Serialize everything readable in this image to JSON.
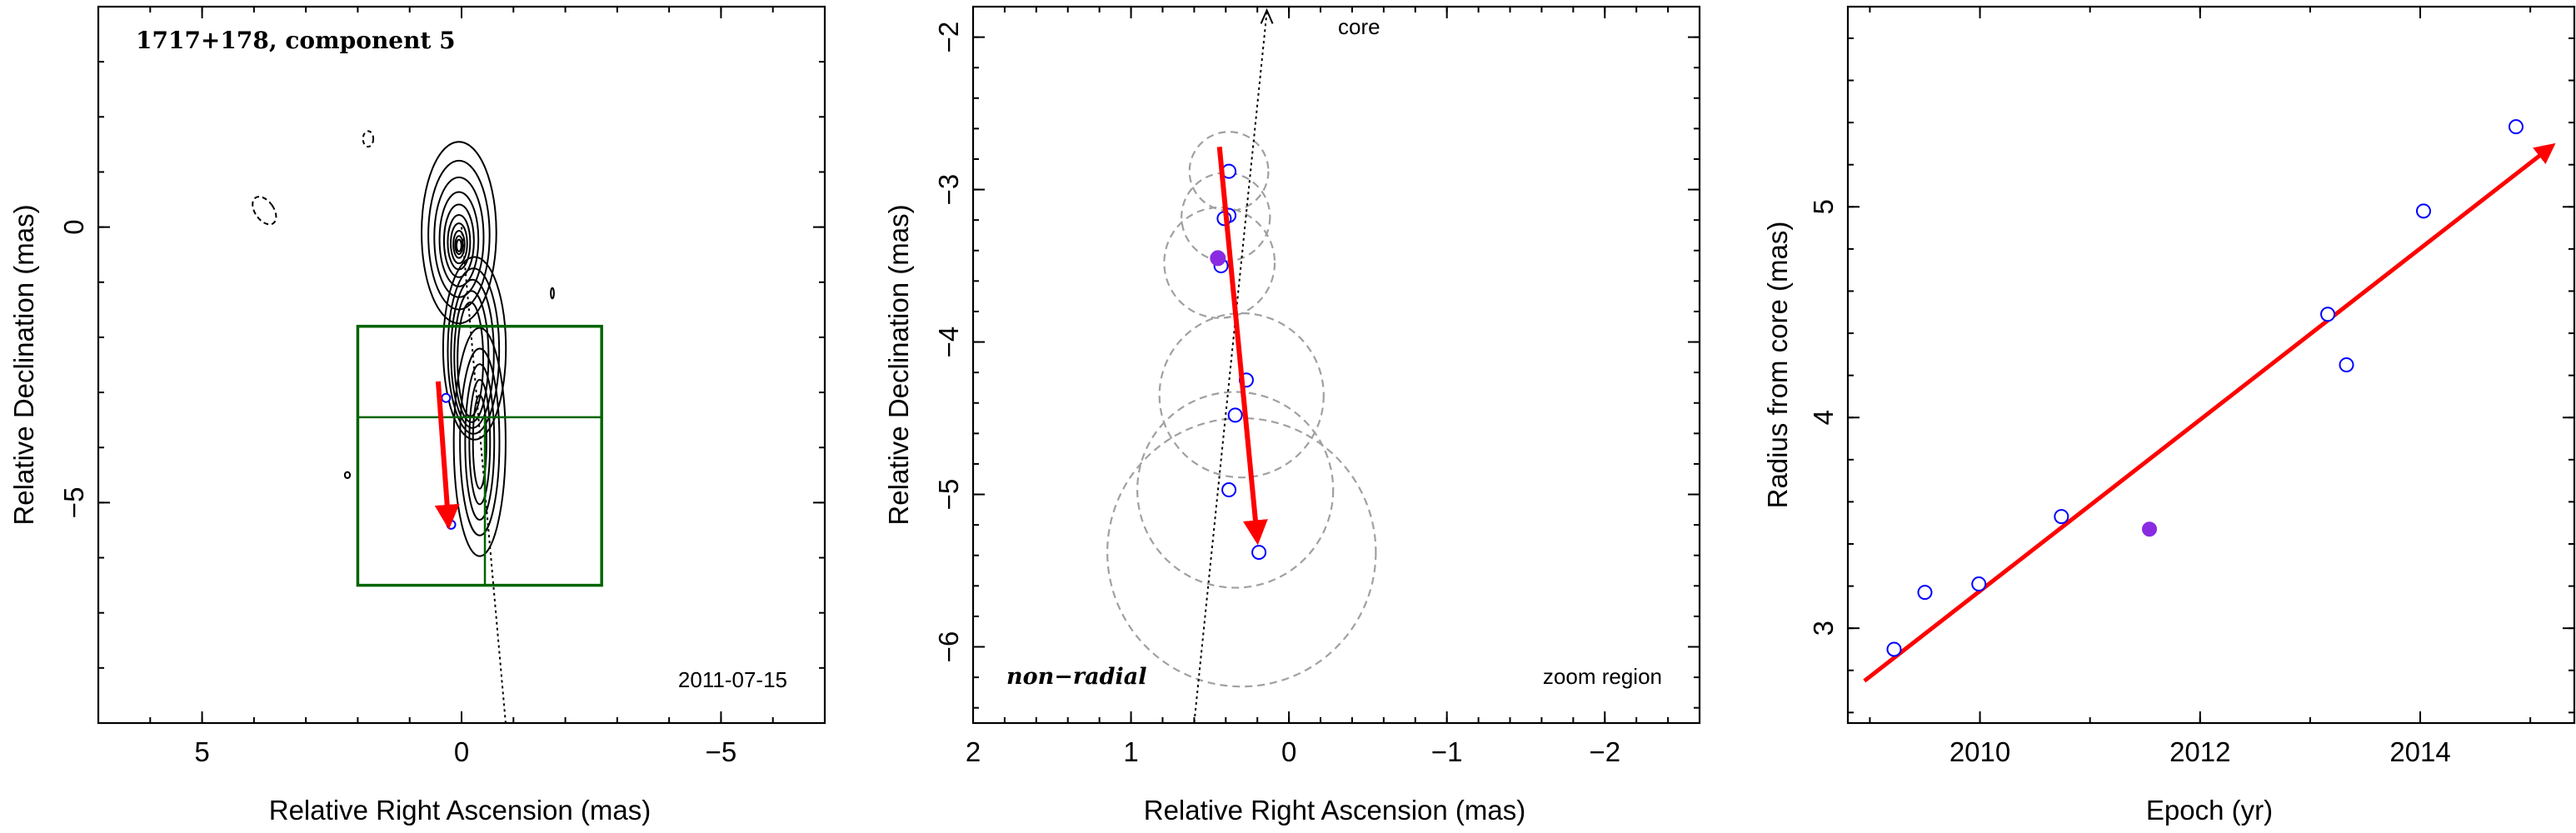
{
  "colors": {
    "arrow": "#ff0000",
    "open_points": "#0000ff",
    "filled_point": "#8a2be2",
    "zoom_box": "#006400",
    "contours": "#000000",
    "ellipses": "#a0a0a0"
  },
  "panel1": {
    "title": "1717+178, component 5",
    "date": "2011-07-15",
    "xlabel": "Relative Right Ascension (mas)",
    "ylabel": "Relative Declination (mas)",
    "xticks": [
      {
        "v": 5,
        "label": "5"
      },
      {
        "v": 0,
        "label": "0"
      },
      {
        "v": -5,
        "label": "−5"
      }
    ],
    "yticks": [
      {
        "v": 0,
        "label": "0"
      },
      {
        "v": -5,
        "label": "−5"
      }
    ]
  },
  "panel2": {
    "core_label": "core",
    "mode_label": "non−radial",
    "zoom_label": "zoom region",
    "xlabel": "Relative Right Ascension (mas)",
    "ylabel": "Relative Declination (mas)",
    "xticks": [
      {
        "v": 2,
        "label": "2"
      },
      {
        "v": 1,
        "label": "1"
      },
      {
        "v": 0,
        "label": "0"
      },
      {
        "v": -1,
        "label": "−1"
      },
      {
        "v": -2,
        "label": "−2"
      }
    ],
    "yticks": [
      {
        "v": -2,
        "label": "−2"
      },
      {
        "v": -3,
        "label": "−3"
      },
      {
        "v": -4,
        "label": "−4"
      },
      {
        "v": -5,
        "label": "−5"
      },
      {
        "v": -6,
        "label": "−6"
      }
    ]
  },
  "panel3": {
    "xlabel": "Epoch (yr)",
    "ylabel": "Radius from core (mas)",
    "xticks": [
      {
        "v": 2010,
        "label": "2010"
      },
      {
        "v": 2012,
        "label": "2012"
      },
      {
        "v": 2014,
        "label": "2014"
      }
    ],
    "yticks": [
      {
        "v": 3,
        "label": "3"
      },
      {
        "v": 4,
        "label": "4"
      },
      {
        "v": 5,
        "label": "5"
      }
    ]
  },
  "chart_data": [
    {
      "type": "scatter",
      "title": "1717+178, component 5",
      "xlabel": "Relative Right Ascension (mas)",
      "ylabel": "Relative Declination (mas)",
      "xlim": [
        7.0,
        -7.0
      ],
      "ylim": [
        -9.0,
        4.0
      ],
      "zoom_region": {
        "x": [
          2.0,
          -2.7
        ],
        "y": [
          -6.5,
          -1.8
        ]
      },
      "open_points": [
        {
          "x": 0.3,
          "y": -3.1
        },
        {
          "x": 0.2,
          "y": -5.4
        }
      ],
      "motion_vector": {
        "from": {
          "x": 0.45,
          "y": -2.8
        },
        "to": {
          "x": 0.25,
          "y": -5.4
        }
      },
      "annotation": "2011-07-15"
    },
    {
      "type": "scatter",
      "xlabel": "Relative Right Ascension (mas)",
      "ylabel": "Relative Declination (mas)",
      "xlim": [
        2.0,
        -2.6
      ],
      "ylim": [
        -6.5,
        -1.8
      ],
      "open_points": [
        {
          "x": 0.38,
          "y": -2.88
        },
        {
          "x": 0.38,
          "y": -3.17
        },
        {
          "x": 0.41,
          "y": -3.19
        },
        {
          "x": 0.43,
          "y": -3.5
        },
        {
          "x": 0.27,
          "y": -4.25
        },
        {
          "x": 0.34,
          "y": -4.48
        },
        {
          "x": 0.38,
          "y": -4.97
        },
        {
          "x": 0.19,
          "y": -5.38
        }
      ],
      "filled_points": [
        {
          "x": 0.45,
          "y": -3.45
        }
      ],
      "ellipses": [
        {
          "x": 0.38,
          "y": -2.88,
          "r": 0.25
        },
        {
          "x": 0.4,
          "y": -3.18,
          "r": 0.28
        },
        {
          "x": 0.44,
          "y": -3.48,
          "r": 0.35
        },
        {
          "x": 0.3,
          "y": -4.35,
          "r": 0.52
        },
        {
          "x": 0.34,
          "y": -4.97,
          "r": 0.62
        },
        {
          "x": 0.3,
          "y": -5.38,
          "r": 0.85
        }
      ],
      "motion_vector": {
        "from": {
          "x": 0.44,
          "y": -2.72
        },
        "to": {
          "x": 0.2,
          "y": -5.3
        }
      },
      "core_direction_line": {
        "from": {
          "x": 0.14,
          "y": -1.78
        },
        "to": {
          "x": 0.6,
          "y": -6.5
        }
      }
    },
    {
      "type": "scatter",
      "xlabel": "Epoch (yr)",
      "ylabel": "Radius from core (mas)",
      "xlim": [
        2008.8,
        2015.4
      ],
      "ylim": [
        2.55,
        5.95
      ],
      "series": [
        {
          "marker": "open-circle",
          "x": [
            2009.22,
            2009.5,
            2009.99,
            2010.74,
            2013.16,
            2013.33,
            2014.03,
            2014.87
          ],
          "y": [
            2.9,
            3.17,
            3.21,
            3.53,
            4.49,
            4.25,
            4.98,
            5.38
          ]
        },
        {
          "marker": "filled-circle",
          "x": [
            2011.54
          ],
          "y": [
            3.47
          ]
        }
      ],
      "fit_line": {
        "from": {
          "x": 2008.95,
          "y": 2.75
        },
        "to": {
          "x": 2015.2,
          "y": 5.29
        }
      }
    }
  ]
}
